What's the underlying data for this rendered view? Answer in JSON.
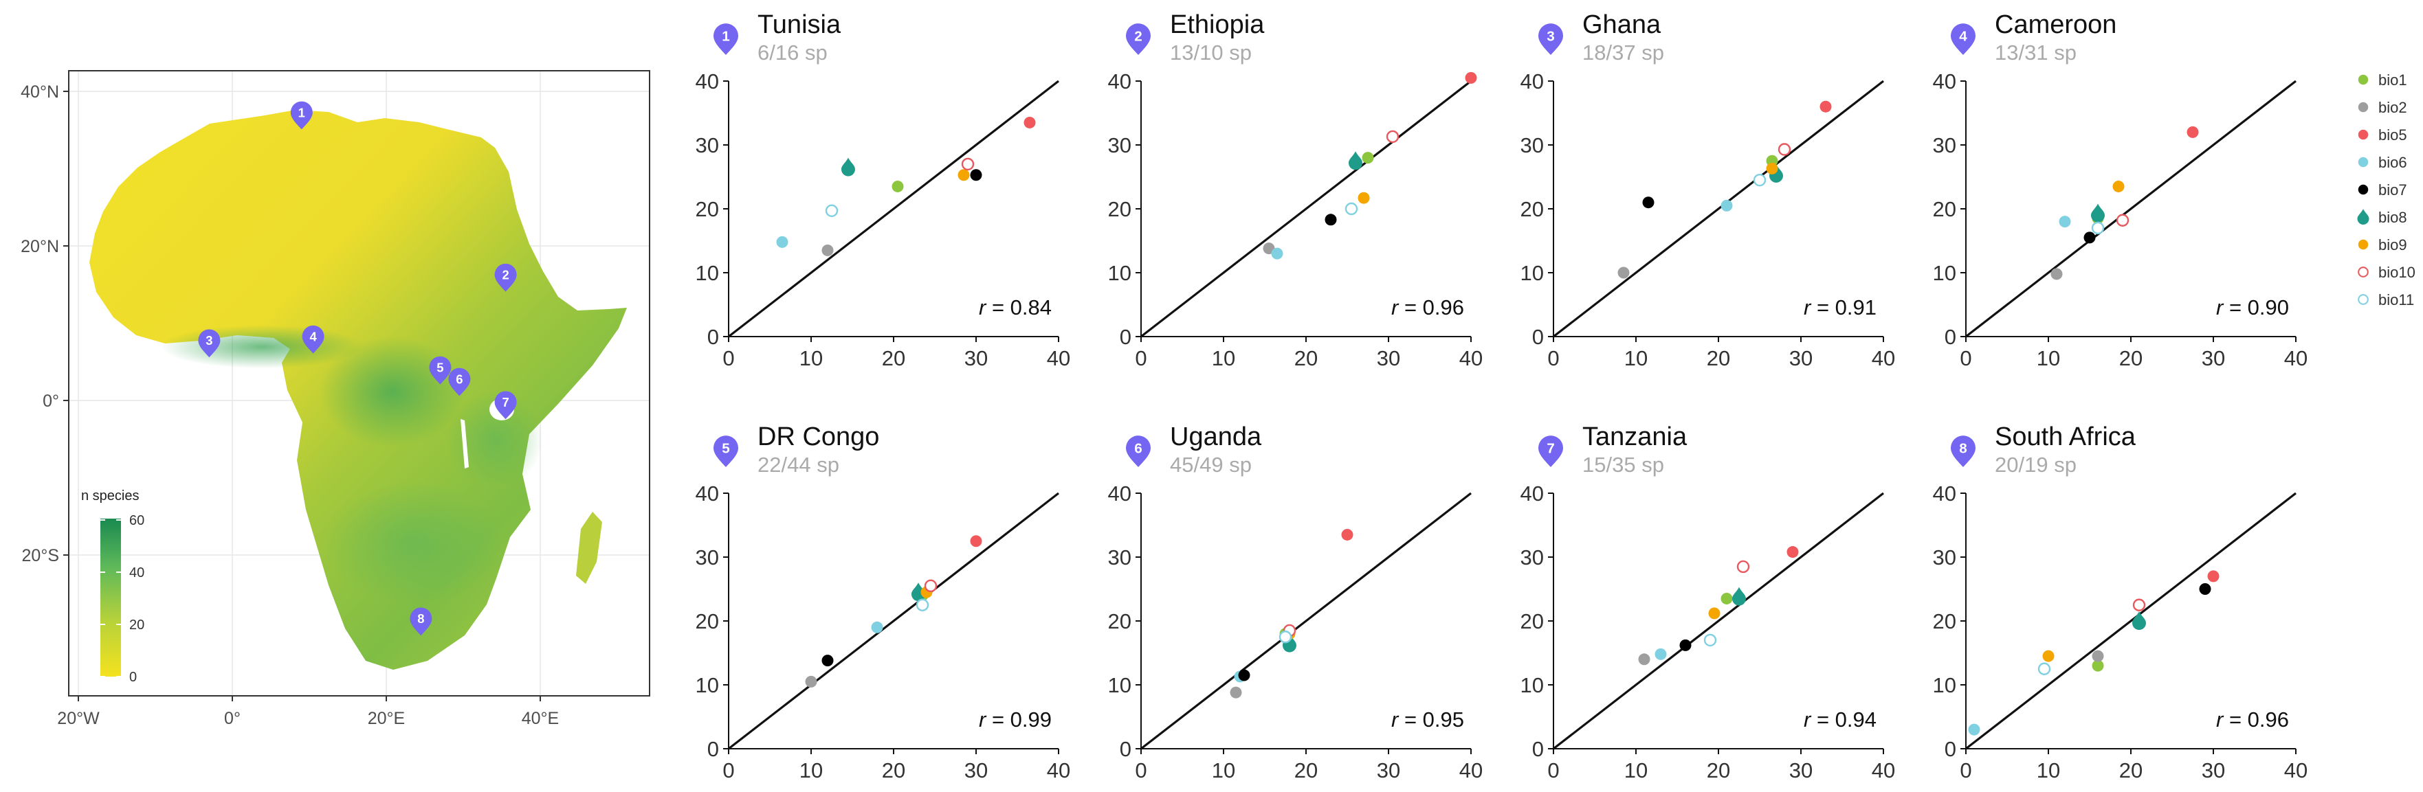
{
  "map": {
    "lat_labels": [
      "40°N",
      "20°N",
      "0°",
      "20°S"
    ],
    "lon_labels": [
      "20°W",
      "0°",
      "20°E",
      "40°E"
    ],
    "legend_title": "n species",
    "legend_ticks": [
      "60",
      "40",
      "20",
      "0"
    ],
    "legend_values": [
      60,
      40,
      20,
      0
    ],
    "markers": [
      {
        "num": "1",
        "lon": 9.0,
        "lat": 36.5
      },
      {
        "num": "2",
        "lon": 35.5,
        "lat": 15.5
      },
      {
        "num": "3",
        "lon": -3.0,
        "lat": 7.0
      },
      {
        "num": "4",
        "lon": 10.5,
        "lat": 7.5
      },
      {
        "num": "5",
        "lon": 27.0,
        "lat": 3.5
      },
      {
        "num": "6",
        "lon": 29.5,
        "lat": 2.0
      },
      {
        "num": "7",
        "lon": 35.5,
        "lat": -1.0
      },
      {
        "num": "8",
        "lon": 24.5,
        "lat": -29.0
      }
    ],
    "marker_color": "#7466f0"
  },
  "legend": {
    "items": [
      {
        "key": "bio1",
        "label": "bio1",
        "color": "#8cc63f",
        "shape": "dot"
      },
      {
        "key": "bio2",
        "label": "bio2",
        "color": "#9e9e9e",
        "shape": "dot"
      },
      {
        "key": "bio5",
        "label": "bio5",
        "color": "#f0585c",
        "shape": "dot"
      },
      {
        "key": "bio6",
        "label": "bio6",
        "color": "#7fd0e0",
        "shape": "dot"
      },
      {
        "key": "bio7",
        "label": "bio7",
        "color": "#000000",
        "shape": "dot"
      },
      {
        "key": "bio8",
        "label": "bio8",
        "color": "#1f9b8a",
        "shape": "drop"
      },
      {
        "key": "bio9",
        "label": "bio9",
        "color": "#f5a500",
        "shape": "dot"
      },
      {
        "key": "bio10",
        "label": "bio10",
        "color": "#e8595f",
        "shape": "ring"
      },
      {
        "key": "bio11",
        "label": "bio11",
        "color": "#7fd0e0",
        "shape": "ring"
      }
    ]
  },
  "chart_data": [
    {
      "type": "scatter",
      "num": "1",
      "title": "Tunisia",
      "subtitle": "6/16 sp",
      "r_label": "r",
      "r_value": "= 0.84",
      "xlim": [
        0,
        40
      ],
      "ylim": [
        0,
        40
      ],
      "ticks": [
        "0",
        "10",
        "20",
        "30",
        "40"
      ],
      "points": [
        {
          "var": "bio1",
          "x": 20.5,
          "y": 23.5
        },
        {
          "var": "bio2",
          "x": 12,
          "y": 13.5
        },
        {
          "var": "bio5",
          "x": 36.5,
          "y": 33.5
        },
        {
          "var": "bio6",
          "x": 6.5,
          "y": 14.8
        },
        {
          "var": "bio7",
          "x": 30,
          "y": 25.3
        },
        {
          "var": "bio8",
          "x": 14.5,
          "y": 26.5
        },
        {
          "var": "bio9",
          "x": 28.5,
          "y": 25.3
        },
        {
          "var": "bio10",
          "x": 29,
          "y": 27
        },
        {
          "var": "bio11",
          "x": 12.5,
          "y": 19.7
        }
      ]
    },
    {
      "type": "scatter",
      "num": "2",
      "title": "Ethiopia",
      "subtitle": "13/10 sp",
      "r_label": "r",
      "r_value": "= 0.96",
      "xlim": [
        0,
        40
      ],
      "ylim": [
        0,
        40
      ],
      "ticks": [
        "0",
        "10",
        "20",
        "30",
        "40"
      ],
      "points": [
        {
          "var": "bio1",
          "x": 27.5,
          "y": 28
        },
        {
          "var": "bio2",
          "x": 15.5,
          "y": 13.8
        },
        {
          "var": "bio5",
          "x": 40,
          "y": 40.5
        },
        {
          "var": "bio6",
          "x": 16.5,
          "y": 13
        },
        {
          "var": "bio7",
          "x": 23,
          "y": 18.3
        },
        {
          "var": "bio8",
          "x": 26,
          "y": 27.5
        },
        {
          "var": "bio9",
          "x": 27,
          "y": 21.7
        },
        {
          "var": "bio10",
          "x": 30.5,
          "y": 31.3
        },
        {
          "var": "bio11",
          "x": 25.5,
          "y": 20
        }
      ]
    },
    {
      "type": "scatter",
      "num": "3",
      "title": "Ghana",
      "subtitle": "18/37 sp",
      "r_label": "r",
      "r_value": "= 0.91",
      "xlim": [
        0,
        40
      ],
      "ylim": [
        0,
        40
      ],
      "ticks": [
        "0",
        "10",
        "20",
        "30",
        "40"
      ],
      "points": [
        {
          "var": "bio1",
          "x": 26.5,
          "y": 27.5
        },
        {
          "var": "bio2",
          "x": 8.5,
          "y": 10
        },
        {
          "var": "bio5",
          "x": 33,
          "y": 36
        },
        {
          "var": "bio6",
          "x": 21,
          "y": 20.5
        },
        {
          "var": "bio7",
          "x": 11.5,
          "y": 21
        },
        {
          "var": "bio8",
          "x": 27,
          "y": 25.5
        },
        {
          "var": "bio9",
          "x": 26.5,
          "y": 26.3
        },
        {
          "var": "bio10",
          "x": 28,
          "y": 29.3
        },
        {
          "var": "bio11",
          "x": 25,
          "y": 24.5
        }
      ]
    },
    {
      "type": "scatter",
      "num": "4",
      "title": "Cameroon",
      "subtitle": "13/31 sp",
      "r_label": "r",
      "r_value": "= 0.90",
      "xlim": [
        0,
        40
      ],
      "ylim": [
        0,
        40
      ],
      "ticks": [
        "0",
        "10",
        "20",
        "30",
        "40"
      ],
      "points": [
        {
          "var": "bio1",
          "x": 16,
          "y": 18.5
        },
        {
          "var": "bio2",
          "x": 11,
          "y": 9.8
        },
        {
          "var": "bio5",
          "x": 27.5,
          "y": 32
        },
        {
          "var": "bio6",
          "x": 12,
          "y": 18
        },
        {
          "var": "bio7",
          "x": 15,
          "y": 15.5
        },
        {
          "var": "bio8",
          "x": 16,
          "y": 19.3
        },
        {
          "var": "bio9",
          "x": 18.5,
          "y": 23.5
        },
        {
          "var": "bio10",
          "x": 19,
          "y": 18.2
        },
        {
          "var": "bio11",
          "x": 16,
          "y": 17
        }
      ]
    },
    {
      "type": "scatter",
      "num": "5",
      "title": "DR Congo",
      "subtitle": "22/44 sp",
      "r_label": "r",
      "r_value": "= 0.99",
      "xlim": [
        0,
        40
      ],
      "ylim": [
        0,
        40
      ],
      "ticks": [
        "0",
        "10",
        "20",
        "30",
        "40"
      ],
      "points": [
        {
          "var": "bio1",
          "x": 23.5,
          "y": 24
        },
        {
          "var": "bio2",
          "x": 10,
          "y": 10.5
        },
        {
          "var": "bio5",
          "x": 30,
          "y": 32.5
        },
        {
          "var": "bio6",
          "x": 18,
          "y": 19
        },
        {
          "var": "bio7",
          "x": 12,
          "y": 13.8
        },
        {
          "var": "bio8",
          "x": 23,
          "y": 24.5
        },
        {
          "var": "bio9",
          "x": 24,
          "y": 24.5
        },
        {
          "var": "bio10",
          "x": 24.5,
          "y": 25.5
        },
        {
          "var": "bio11",
          "x": 23.5,
          "y": 22.5
        }
      ]
    },
    {
      "type": "scatter",
      "num": "6",
      "title": "Uganda",
      "subtitle": "45/49 sp",
      "r_label": "r",
      "r_value": "= 0.95",
      "xlim": [
        0,
        40
      ],
      "ylim": [
        0,
        40
      ],
      "ticks": [
        "0",
        "10",
        "20",
        "30",
        "40"
      ],
      "points": [
        {
          "var": "bio1",
          "x": 17.5,
          "y": 18
        },
        {
          "var": "bio2",
          "x": 11.5,
          "y": 8.8
        },
        {
          "var": "bio5",
          "x": 25,
          "y": 33.5
        },
        {
          "var": "bio6",
          "x": 12,
          "y": 11.3
        },
        {
          "var": "bio7",
          "x": 12.5,
          "y": 11.5
        },
        {
          "var": "bio8",
          "x": 18,
          "y": 16.5
        },
        {
          "var": "bio9",
          "x": 18,
          "y": 18
        },
        {
          "var": "bio10",
          "x": 18,
          "y": 18.5
        },
        {
          "var": "bio11",
          "x": 17.5,
          "y": 17.5
        }
      ]
    },
    {
      "type": "scatter",
      "num": "7",
      "title": "Tanzania",
      "subtitle": "15/35 sp",
      "r_label": "r",
      "r_value": "= 0.94",
      "xlim": [
        0,
        40
      ],
      "ylim": [
        0,
        40
      ],
      "ticks": [
        "0",
        "10",
        "20",
        "30",
        "40"
      ],
      "points": [
        {
          "var": "bio1",
          "x": 21,
          "y": 23.5
        },
        {
          "var": "bio2",
          "x": 11,
          "y": 14
        },
        {
          "var": "bio5",
          "x": 29,
          "y": 30.8
        },
        {
          "var": "bio6",
          "x": 13,
          "y": 14.8
        },
        {
          "var": "bio7",
          "x": 16,
          "y": 16.2
        },
        {
          "var": "bio8",
          "x": 22.5,
          "y": 23.8
        },
        {
          "var": "bio9",
          "x": 19.5,
          "y": 21.2
        },
        {
          "var": "bio10",
          "x": 23,
          "y": 28.5
        },
        {
          "var": "bio11",
          "x": 19,
          "y": 17
        }
      ]
    },
    {
      "type": "scatter",
      "num": "8",
      "title": "South Africa",
      "subtitle": "20/19 sp",
      "r_label": "r",
      "r_value": "= 0.96",
      "xlim": [
        0,
        40
      ],
      "ylim": [
        0,
        40
      ],
      "ticks": [
        "0",
        "10",
        "20",
        "30",
        "40"
      ],
      "points": [
        {
          "var": "bio1",
          "x": 16,
          "y": 13
        },
        {
          "var": "bio2",
          "x": 16,
          "y": 14.5
        },
        {
          "var": "bio5",
          "x": 30,
          "y": 27
        },
        {
          "var": "bio6",
          "x": 1,
          "y": 3
        },
        {
          "var": "bio7",
          "x": 29,
          "y": 25
        },
        {
          "var": "bio8",
          "x": 21,
          "y": 20
        },
        {
          "var": "bio9",
          "x": 10,
          "y": 14.5
        },
        {
          "var": "bio10",
          "x": 21,
          "y": 22.5
        },
        {
          "var": "bio11",
          "x": 9.5,
          "y": 12.5
        }
      ]
    }
  ]
}
